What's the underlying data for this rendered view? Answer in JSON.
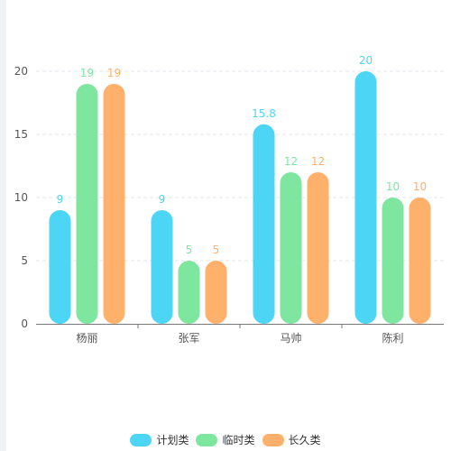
{
  "chart_data": {
    "type": "bar",
    "categories": [
      "杨丽",
      "张军",
      "马帅",
      "陈利"
    ],
    "series": [
      {
        "name": "计划类",
        "values": [
          9,
          9,
          15.8,
          20
        ],
        "color": "#4dd5f5"
      },
      {
        "name": "临时类",
        "values": [
          19,
          5,
          12,
          10
        ],
        "color": "#7ee69f"
      },
      {
        "name": "长久类",
        "values": [
          19,
          5,
          12,
          10
        ],
        "color": "#ffb06a"
      }
    ],
    "ylim": [
      0,
      20
    ],
    "yticks": [
      0,
      5,
      10,
      15,
      20
    ],
    "grid": true,
    "legend_position": "bottom-center",
    "data_labels": true,
    "title": "",
    "xlabel": "",
    "ylabel": ""
  }
}
